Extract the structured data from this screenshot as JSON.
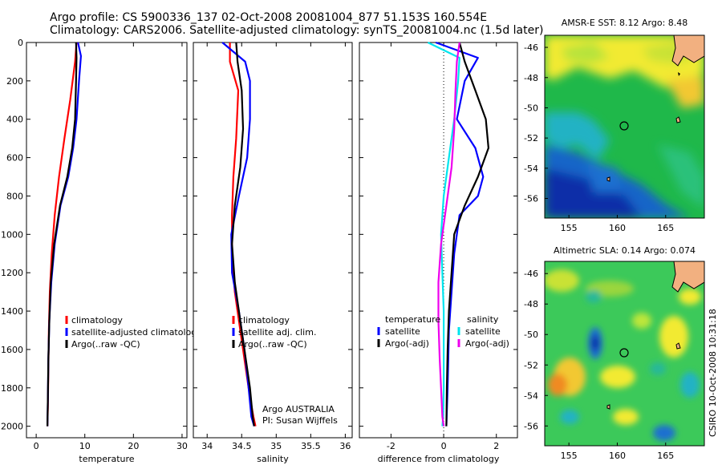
{
  "header": {
    "line1": "Argo profile: CS 5900336_137 02-Oct-2008 20081004_877 51.153S 160.554E",
    "line2": "Climatology: CARS2006. Satellite-adjusted climatology: synTS_20081004.nc (1.5d later)"
  },
  "side_stamp": "CSIRO 10-Oct-2008 10:31:18",
  "colors": {
    "red": "#ff0000",
    "blue": "#0000ff",
    "black": "#000000",
    "cyan": "#00e5ee",
    "magenta": "#ee00ee"
  },
  "chart_data": [
    {
      "type": "line",
      "id": "temperature",
      "xlabel": "temperature",
      "ylabel": "",
      "xlim": [
        -2,
        31
      ],
      "ylim": [
        2060,
        0
      ],
      "xticks": [
        0,
        10,
        20,
        30
      ],
      "yticks": [
        0,
        200,
        400,
        600,
        800,
        1000,
        1200,
        1400,
        1600,
        1800,
        2000
      ],
      "series": [
        {
          "name": "climatology",
          "color": "red",
          "x": [
            8.3,
            8.0,
            7.0,
            5.8,
            4.7,
            3.8,
            3.2,
            2.8,
            2.6,
            2.5,
            2.4,
            2.3
          ],
          "y": [
            0,
            100,
            300,
            500,
            700,
            900,
            1100,
            1300,
            1500,
            1700,
            1900,
            2000
          ]
        },
        {
          "name": "satellite-adjusted climatology",
          "color": "blue",
          "x": [
            8.6,
            9.2,
            8.8,
            8.3,
            7.6,
            6.6,
            5.0,
            3.8,
            3.1,
            2.7,
            2.5,
            2.4,
            2.3
          ],
          "y": [
            0,
            70,
            200,
            400,
            550,
            700,
            850,
            1050,
            1250,
            1450,
            1650,
            1850,
            2000
          ]
        },
        {
          "name": "Argo(..raw -QC)",
          "color": "black",
          "x": [
            8.2,
            8.3,
            8.2,
            8.0,
            7.4,
            6.4,
            4.9,
            3.7,
            3.0,
            2.7,
            2.5,
            2.4,
            2.3
          ],
          "y": [
            0,
            80,
            200,
            400,
            550,
            700,
            850,
            1050,
            1250,
            1450,
            1650,
            1850,
            2000
          ]
        }
      ],
      "legend": [
        "climatology",
        "satellite-adjusted climatology",
        "Argo(..raw -QC)"
      ]
    },
    {
      "type": "line",
      "id": "salinity",
      "xlabel": "salinity",
      "xlim": [
        33.8,
        36.1
      ],
      "ylim": [
        2060,
        0
      ],
      "xticks": [
        34,
        34.5,
        35,
        35.5,
        36
      ],
      "xticklabels": [
        "34",
        "34.5",
        "35",
        "35.5",
        "36"
      ],
      "series": [
        {
          "name": "climatology",
          "color": "red",
          "x": [
            34.33,
            34.33,
            34.45,
            34.42,
            34.38,
            34.36,
            34.36,
            34.4,
            34.48,
            34.56,
            34.62,
            34.67,
            34.7
          ],
          "y": [
            0,
            100,
            250,
            500,
            700,
            900,
            1100,
            1300,
            1500,
            1700,
            1850,
            1950,
            2000
          ]
        },
        {
          "name": "satellite adj. clim.",
          "color": "blue",
          "x": [
            34.22,
            34.55,
            34.62,
            34.62,
            34.58,
            34.46,
            34.35,
            34.36,
            34.46,
            34.54,
            34.6,
            34.64,
            34.68
          ],
          "y": [
            0,
            100,
            200,
            400,
            600,
            800,
            1000,
            1200,
            1400,
            1600,
            1800,
            1950,
            2000
          ]
        },
        {
          "name": "Argo(..raw -QC)",
          "color": "black",
          "x": [
            34.42,
            34.44,
            34.5,
            34.52,
            34.48,
            34.4,
            34.36,
            34.4,
            34.48,
            34.56,
            34.62,
            34.66,
            34.68
          ],
          "y": [
            0,
            100,
            250,
            450,
            650,
            850,
            1050,
            1250,
            1450,
            1650,
            1800,
            1950,
            2000
          ]
        }
      ],
      "legend": [
        "climatology",
        "satellite adj. clim.",
        "Argo(..raw -QC)"
      ],
      "annotation": [
        "Argo AUSTRALIA",
        "PI: Susan Wijffels"
      ]
    },
    {
      "type": "line",
      "id": "difference",
      "xlabel": "difference from climatology",
      "xlim": [
        -3.2,
        2.8
      ],
      "ylim": [
        2060,
        0
      ],
      "xticks": [
        -2,
        0,
        2
      ],
      "series": [
        {
          "name": "temperature satellite",
          "color": "blue",
          "x": [
            -0.3,
            1.3,
            0.8,
            0.5,
            1.2,
            1.5,
            1.3,
            0.6,
            0.4,
            0.3,
            0.2,
            0.15,
            0.1
          ],
          "y": [
            0,
            80,
            200,
            400,
            550,
            700,
            800,
            900,
            1100,
            1300,
            1500,
            1800,
            2000
          ]
        },
        {
          "name": "temperature Argo(-adj)",
          "color": "black",
          "x": [
            0.6,
            0.8,
            1.2,
            1.6,
            1.7,
            1.3,
            0.8,
            0.4,
            0.3,
            0.2,
            0.15,
            0.12,
            0.1
          ],
          "y": [
            0,
            100,
            250,
            400,
            550,
            700,
            850,
            1000,
            1200,
            1400,
            1600,
            1800,
            2000
          ]
        },
        {
          "name": "salinity satellite",
          "color": "cyan",
          "x": [
            -0.6,
            0.6,
            0.55,
            0.4,
            0.2,
            0.0,
            -0.1,
            -0.05,
            0.0,
            0.0,
            0.0,
            -0.02,
            -0.05
          ],
          "y": [
            0,
            80,
            200,
            400,
            600,
            800,
            1000,
            1200,
            1400,
            1600,
            1800,
            1950,
            2000
          ]
        },
        {
          "name": "salinity Argo(-adj)",
          "color": "magenta",
          "x": [
            0.6,
            0.5,
            0.45,
            0.4,
            0.3,
            0.1,
            -0.1,
            -0.2,
            -0.2,
            -0.15,
            -0.1,
            -0.05,
            0.0
          ],
          "y": [
            0,
            100,
            250,
            450,
            650,
            850,
            1050,
            1250,
            1450,
            1650,
            1800,
            1950,
            2000
          ]
        }
      ],
      "legend_headers": [
        "temperature",
        "salinity"
      ],
      "legend_left": [
        "satellite",
        "Argo(-adj)"
      ],
      "legend_right": [
        "satellite",
        "Argo(-adj)"
      ]
    },
    {
      "type": "heatmap",
      "id": "sst_map",
      "title": "AMSR-E SST: 8.12 Argo: 8.48",
      "xlim": [
        152.5,
        169
      ],
      "ylim": [
        -57.3,
        -45.2
      ],
      "xticks": [
        155,
        160,
        165
      ],
      "yticks": [
        -46,
        -48,
        -50,
        -52,
        -54,
        -56
      ],
      "argo_position": [
        160.55,
        -51.15
      ]
    },
    {
      "type": "heatmap",
      "id": "sla_map",
      "title": "Altimetric SLA: 0.14 Argo: 0.074",
      "xlim": [
        152.5,
        169
      ],
      "ylim": [
        -57.3,
        -45.2
      ],
      "xticks": [
        155,
        160,
        165
      ],
      "yticks": [
        -46,
        -48,
        -50,
        -52,
        -54,
        -56
      ],
      "argo_position": [
        160.55,
        -51.15
      ]
    }
  ]
}
